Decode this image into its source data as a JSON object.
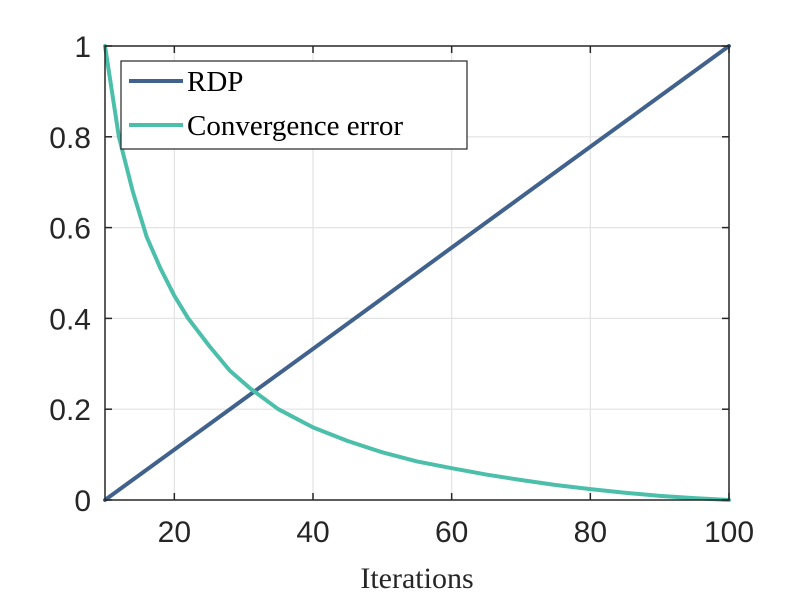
{
  "chart_data": {
    "type": "line",
    "title": "",
    "xlabel": "Iterations",
    "ylabel": "",
    "xlim": [
      10,
      100
    ],
    "ylim": [
      0,
      1
    ],
    "grid": true,
    "legend_position": "top-left",
    "xticks": [
      20,
      40,
      60,
      80,
      100
    ],
    "xtick_labels": [
      "20",
      "40",
      "60",
      "80",
      "100"
    ],
    "yticks": [
      0,
      0.2,
      0.4,
      0.6,
      0.8,
      1
    ],
    "ytick_labels": [
      "0",
      "0.2",
      "0.4",
      "0.6",
      "0.8",
      "1"
    ],
    "series": [
      {
        "name": "RDP",
        "color": "#40628c",
        "x": [
          10,
          20,
          30,
          40,
          50,
          60,
          70,
          80,
          90,
          100
        ],
        "y": [
          0,
          0.111,
          0.222,
          0.333,
          0.444,
          0.556,
          0.667,
          0.778,
          0.889,
          1
        ]
      },
      {
        "name": "Convergence error",
        "color": "#4cbfaa",
        "x": [
          10,
          12,
          14,
          16,
          18,
          20,
          22,
          25,
          28,
          31,
          35,
          40,
          45,
          50,
          55,
          60,
          65,
          70,
          75,
          80,
          85,
          90,
          95,
          100
        ],
        "y": [
          1,
          0.8,
          0.68,
          0.58,
          0.51,
          0.45,
          0.4,
          0.34,
          0.285,
          0.245,
          0.2,
          0.16,
          0.13,
          0.105,
          0.085,
          0.07,
          0.056,
          0.044,
          0.033,
          0.024,
          0.016,
          0.009,
          0.004,
          0
        ]
      }
    ]
  }
}
